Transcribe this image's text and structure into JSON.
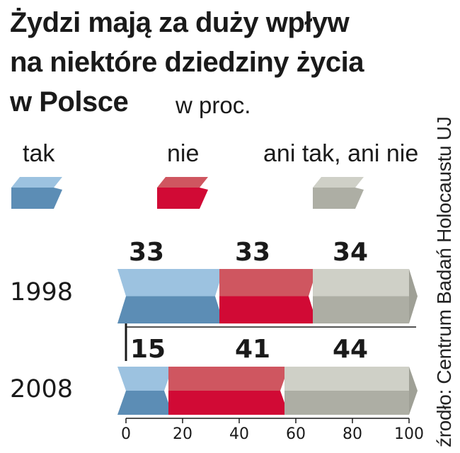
{
  "chart_data": {
    "type": "bar",
    "stacked": true,
    "title_lines": [
      "Żydzi mają za duży wpływ",
      "na niektóre dziedziny życia",
      "w Polsce"
    ],
    "unit": "w proc.",
    "source": "źrodło: Centrum Badań Holocaustu UJ",
    "categories": [
      "1998",
      "2008"
    ],
    "series": [
      {
        "name": "tak",
        "values": [
          33,
          15
        ],
        "color_top": "#9cc2e0",
        "color_bottom": "#5c8db5"
      },
      {
        "name": "nie",
        "values": [
          33,
          41
        ],
        "color_top": "#cf5660",
        "color_bottom": "#d10a35"
      },
      {
        "name": "ani tak, ani nie",
        "values": [
          34,
          44
        ],
        "color_top": "#cfd0c7",
        "color_bottom": "#adaea4"
      }
    ],
    "xlim": [
      0,
      100
    ],
    "x_ticks": [
      "0",
      "20",
      "40",
      "60",
      "80",
      "100"
    ],
    "legend_position": "top"
  }
}
